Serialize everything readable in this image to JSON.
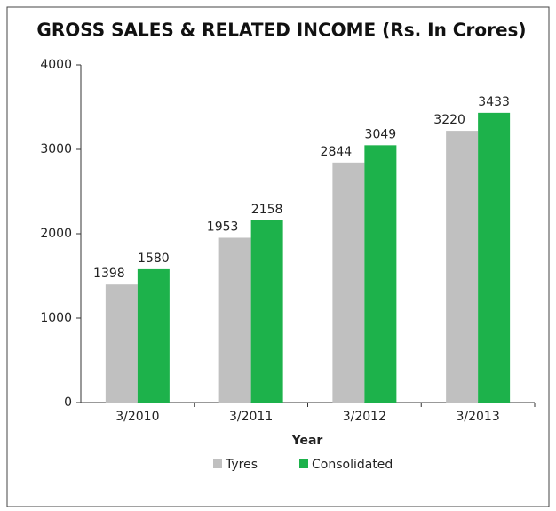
{
  "chart_data": {
    "type": "bar",
    "title": "GROSS SALES & RELATED INCOME (Rs. In Crores)",
    "categories": [
      "3/2010",
      "3/2011",
      "3/2012",
      "3/2013"
    ],
    "series": [
      {
        "name": "Tyres",
        "color": "#c0c0c0",
        "values": [
          1398,
          1953,
          2844,
          3220
        ]
      },
      {
        "name": "Consolidated",
        "color": "#1db24b",
        "values": [
          1580,
          2158,
          3049,
          3433
        ]
      }
    ],
    "xlabel": "Year",
    "ylim": [
      0,
      4000
    ],
    "yticks": [
      0,
      1000,
      2000,
      3000,
      4000
    ],
    "grid": false
  }
}
